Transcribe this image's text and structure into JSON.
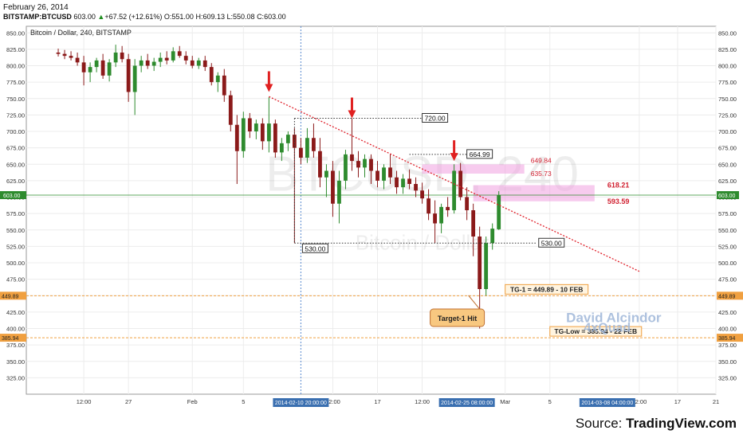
{
  "header": {
    "date": "February 26, 2014",
    "symbol": "BITSTAMP:BTCUSD",
    "price": "603.00",
    "change_arrow": "▲",
    "change": "+67.52 (+12.61%)",
    "o_label": "O:",
    "o": "551.00",
    "h_label": "H:",
    "h": "609.13",
    "l_label": "L:",
    "l": "550.08",
    "c_label": "C:",
    "c": "603.00"
  },
  "chart_title": "Bitcoin / Dollar, 240, BITSTAMP",
  "watermark": {
    "big": "BTCUSD, 240",
    "small": "Bitcoin / Dollar"
  },
  "source": {
    "prefix": "Source: ",
    "name": "TradingView.com"
  },
  "signature": {
    "line1": "David Alcindor",
    "line2": "4xQuad"
  },
  "colors": {
    "up": "#2e8b2e",
    "down": "#8b1a1a",
    "trendline": "#e0202a",
    "current_price": "#2e8b2e",
    "target": "#f0a040",
    "zone": "#f0a0e0",
    "axis_flag": "#3a6fb0"
  },
  "chart_data": {
    "type": "candlestick",
    "symbol": "BTCUSD",
    "exchange": "BITSTAMP",
    "interval": "240",
    "ylim": [
      300,
      860
    ],
    "y_ticks": [
      325,
      350,
      375,
      400,
      425,
      450,
      475,
      500,
      525,
      550,
      575,
      600,
      625,
      650,
      675,
      700,
      725,
      750,
      775,
      800,
      825,
      850
    ],
    "y_tick_labels": [
      "325.00",
      "350.00",
      "375.00",
      "400.00",
      "425.00",
      "450.00",
      "475.00",
      "500.00",
      "525.00",
      "550.00",
      "575.00",
      "600.00",
      "625.00",
      "650.00",
      "675.00",
      "700.00",
      "725.00",
      "750.00",
      "775.00",
      "800.00",
      "825.00",
      "850.00"
    ],
    "x_range": [
      -5,
      103
    ],
    "x_ticks": [
      {
        "x": 4,
        "label": "12:00"
      },
      {
        "x": 11,
        "label": "27"
      },
      {
        "x": 21,
        "label": "Feb"
      },
      {
        "x": 29,
        "label": "5"
      },
      {
        "x": 43,
        "label": "12:00"
      },
      {
        "x": 50,
        "label": "17"
      },
      {
        "x": 57,
        "label": "12:00"
      },
      {
        "x": 70,
        "label": "Mar"
      },
      {
        "x": 77,
        "label": "5"
      },
      {
        "x": 91,
        "label": "12:00"
      },
      {
        "x": 97,
        "label": "17"
      },
      {
        "x": 103,
        "label": "21"
      }
    ],
    "x_axis_flags": [
      {
        "x": 38,
        "label": "2014-02-10 20:00:00",
        "crosshair": true
      },
      {
        "x": 64,
        "label": "2014-02-25 08:00:00",
        "crosshair": false
      },
      {
        "x": 86,
        "label": "2014-03-08 04:00:00",
        "crosshair": false
      }
    ],
    "candles_key": [
      "o",
      "h",
      "l",
      "c"
    ],
    "candles": [
      [
        820,
        826,
        814,
        818
      ],
      [
        818,
        824,
        810,
        815
      ],
      [
        815,
        822,
        808,
        812
      ],
      [
        812,
        820,
        800,
        805
      ],
      [
        805,
        815,
        770,
        790
      ],
      [
        790,
        805,
        775,
        798
      ],
      [
        798,
        812,
        790,
        808
      ],
      [
        808,
        818,
        780,
        785
      ],
      [
        785,
        810,
        776,
        805
      ],
      [
        805,
        832,
        798,
        820
      ],
      [
        820,
        830,
        805,
        810
      ],
      [
        810,
        818,
        745,
        760
      ],
      [
        760,
        810,
        725,
        800
      ],
      [
        800,
        815,
        790,
        808
      ],
      [
        808,
        818,
        795,
        800
      ],
      [
        800,
        812,
        792,
        806
      ],
      [
        806,
        820,
        798,
        812
      ],
      [
        812,
        822,
        802,
        808
      ],
      [
        808,
        828,
        805,
        822
      ],
      [
        822,
        830,
        812,
        815
      ],
      [
        815,
        822,
        802,
        808
      ],
      [
        808,
        815,
        796,
        800
      ],
      [
        800,
        812,
        795,
        808
      ],
      [
        808,
        815,
        792,
        798
      ],
      [
        798,
        804,
        770,
        775
      ],
      [
        775,
        790,
        760,
        785
      ],
      [
        785,
        795,
        745,
        755
      ],
      [
        755,
        762,
        700,
        710
      ],
      [
        710,
        725,
        620,
        670
      ],
      [
        670,
        730,
        660,
        720
      ],
      [
        720,
        728,
        690,
        700
      ],
      [
        700,
        718,
        688,
        712
      ],
      [
        712,
        720,
        672,
        685
      ],
      [
        685,
        752,
        668,
        712
      ],
      [
        712,
        718,
        660,
        668
      ],
      [
        668,
        690,
        655,
        682
      ],
      [
        682,
        700,
        670,
        695
      ],
      [
        695,
        705,
        530,
        675
      ],
      [
        675,
        690,
        650,
        660
      ],
      [
        660,
        705,
        652,
        690
      ],
      [
        690,
        712,
        660,
        670
      ],
      [
        670,
        690,
        615,
        630
      ],
      [
        630,
        650,
        600,
        640
      ],
      [
        640,
        655,
        570,
        590
      ],
      [
        590,
        640,
        560,
        625
      ],
      [
        625,
        672,
        612,
        665
      ],
      [
        665,
        720,
        640,
        655
      ],
      [
        655,
        670,
        630,
        645
      ],
      [
        645,
        665,
        630,
        658
      ],
      [
        658,
        665,
        620,
        640
      ],
      [
        640,
        655,
        615,
        625
      ],
      [
        625,
        650,
        612,
        645
      ],
      [
        645,
        665,
        620,
        630
      ],
      [
        630,
        640,
        605,
        615
      ],
      [
        615,
        635,
        605,
        628
      ],
      [
        628,
        642,
        612,
        620
      ],
      [
        620,
        630,
        600,
        610
      ],
      [
        610,
        622,
        590,
        598
      ],
      [
        598,
        612,
        565,
        575
      ],
      [
        575,
        595,
        530,
        560
      ],
      [
        560,
        590,
        545,
        585
      ],
      [
        585,
        600,
        570,
        580
      ],
      [
        580,
        650,
        575,
        640
      ],
      [
        640,
        652,
        595,
        600
      ],
      [
        600,
        615,
        565,
        580
      ],
      [
        580,
        590,
        510,
        540
      ],
      [
        540,
        555,
        400,
        460
      ],
      [
        460,
        540,
        450,
        530
      ],
      [
        530,
        560,
        520,
        552
      ],
      [
        551,
        609,
        550,
        603
      ]
    ],
    "current_price": 603.0,
    "trendline": {
      "x1": 33,
      "y1": 753,
      "x2": 91,
      "y2": 487
    },
    "resistance_lines": [
      {
        "x1": 37,
        "x2": 57,
        "y": 720,
        "label": "720.00"
      },
      {
        "x1": 55,
        "x2": 64,
        "y": 664.99,
        "label": "664.99"
      }
    ],
    "support_lines": [
      {
        "x1": 37,
        "x2": 75,
        "y": 530,
        "left_label": "530.00",
        "right_label": "530.00"
      }
    ],
    "arrows_at": [
      {
        "x": 33,
        "y": 760
      },
      {
        "x": 46,
        "y": 720
      },
      {
        "x": 62,
        "y": 655
      }
    ],
    "zones": [
      {
        "x1": 57,
        "x2": 73,
        "top": 649.84,
        "bottom": 635.73,
        "top_label": "649.84",
        "bottom_label": "635.73"
      },
      {
        "x1": 65,
        "x2": 84,
        "top": 618.21,
        "bottom": 593.59,
        "top_label": "618.21",
        "bottom_label": "593.59"
      }
    ],
    "target_lines": [
      {
        "y": 449.89,
        "axis_label": "449.89",
        "note": "TG-1 = 449.89 - 10 FEB"
      },
      {
        "y": 385.94,
        "axis_label": "385.94",
        "note": "TG-Low = 385.94 - 22 FEB"
      }
    ],
    "callout": {
      "text": "Target-1 Hit",
      "x": 59,
      "y": 420,
      "point_x": 64,
      "point_y": 460
    }
  }
}
